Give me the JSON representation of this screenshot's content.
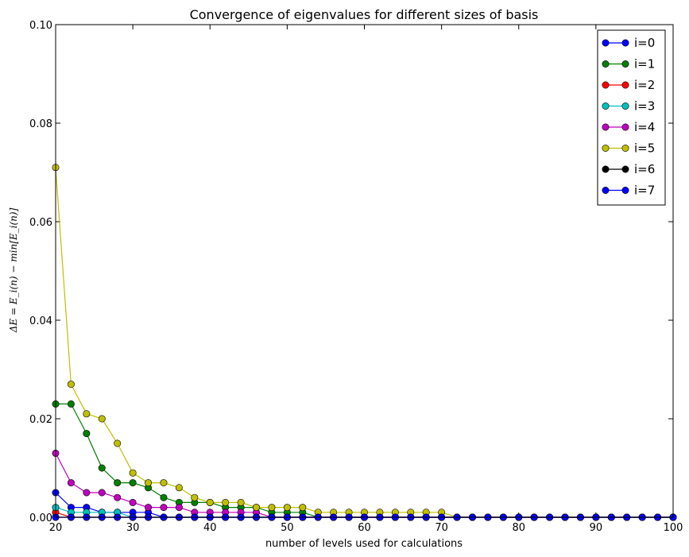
{
  "chart_data": {
    "type": "line",
    "title": "Convergence of eigenvalues for different sizes of basis",
    "xlabel": "number of levels used for calculations",
    "ylabel": "ΔE = E_i(n) − min[E_i(n)]",
    "xlim": [
      20,
      100
    ],
    "ylim": [
      0,
      0.1
    ],
    "x_ticks": [
      "20",
      "30",
      "40",
      "50",
      "60",
      "70",
      "80",
      "90",
      "100"
    ],
    "y_ticks": [
      "0.00",
      "0.02",
      "0.04",
      "0.06",
      "0.08",
      "0.10"
    ],
    "grid": false,
    "legend_position": "top-right",
    "x": [
      20,
      22,
      24,
      26,
      28,
      30,
      32,
      34,
      36,
      38,
      40,
      42,
      44,
      46,
      48,
      50,
      52,
      54,
      56,
      58,
      60,
      62,
      64,
      66,
      68,
      70,
      72,
      74,
      76,
      78,
      80,
      82,
      84,
      86,
      88,
      90,
      92,
      94,
      96,
      98,
      100
    ],
    "series": [
      {
        "name": "i=0",
        "color": "#0000ff",
        "values": [
          0.005,
          0.002,
          0.002,
          0.001,
          0.001,
          0.001,
          0.001,
          0,
          0,
          0,
          0,
          0,
          0,
          0,
          0,
          0,
          0,
          0,
          0,
          0,
          0,
          0,
          0,
          0,
          0,
          0,
          0,
          0,
          0,
          0,
          0,
          0,
          0,
          0,
          0,
          0,
          0,
          0,
          0,
          0,
          0
        ]
      },
      {
        "name": "i=1",
        "color": "#008000",
        "values": [
          0.023,
          0.023,
          0.017,
          0.01,
          0.007,
          0.007,
          0.006,
          0.004,
          0.003,
          0.003,
          0.003,
          0.002,
          0.002,
          0.002,
          0.001,
          0.001,
          0.001,
          0,
          0,
          0,
          0,
          0,
          0,
          0,
          0,
          0,
          0,
          0,
          0,
          0,
          0,
          0,
          0,
          0,
          0,
          0,
          0,
          0,
          0,
          0,
          0
        ]
      },
      {
        "name": "i=2",
        "color": "#ff0000",
        "values": [
          0.001,
          0,
          0,
          0,
          0,
          0,
          0,
          0,
          0,
          0,
          0,
          0,
          0,
          0,
          0,
          0,
          0,
          0,
          0,
          0,
          0,
          0,
          0,
          0,
          0,
          0,
          0,
          0,
          0,
          0,
          0,
          0,
          0,
          0,
          0,
          0,
          0,
          0,
          0,
          0,
          0
        ]
      },
      {
        "name": "i=3",
        "color": "#00bfbf",
        "values": [
          0.002,
          0.001,
          0.001,
          0.001,
          0.001,
          0,
          0,
          0,
          0,
          0,
          0,
          0,
          0,
          0,
          0,
          0,
          0,
          0,
          0,
          0,
          0,
          0,
          0,
          0,
          0,
          0,
          0,
          0,
          0,
          0,
          0,
          0,
          0,
          0,
          0,
          0,
          0,
          0,
          0,
          0,
          0
        ]
      },
      {
        "name": "i=4",
        "color": "#bf00bf",
        "values": [
          0.013,
          0.007,
          0.005,
          0.005,
          0.004,
          0.003,
          0.002,
          0.002,
          0.002,
          0.001,
          0.001,
          0.001,
          0.001,
          0.001,
          0,
          0,
          0,
          0,
          0,
          0,
          0,
          0,
          0,
          0,
          0,
          0,
          0,
          0,
          0,
          0,
          0,
          0,
          0,
          0,
          0,
          0,
          0,
          0,
          0,
          0,
          0
        ]
      },
      {
        "name": "i=5",
        "color": "#bfbf00",
        "values": [
          0.071,
          0.027,
          0.021,
          0.02,
          0.015,
          0.009,
          0.007,
          0.007,
          0.006,
          0.004,
          0.003,
          0.003,
          0.003,
          0.002,
          0.002,
          0.002,
          0.002,
          0.001,
          0.001,
          0.001,
          0.001,
          0.001,
          0.001,
          0.001,
          0.001,
          0.001,
          0,
          0,
          0,
          0,
          0,
          0,
          0,
          0,
          0,
          0,
          0,
          0,
          0,
          0,
          0
        ]
      },
      {
        "name": "i=6",
        "color": "#000000",
        "values": [
          0,
          0,
          0,
          0,
          0,
          0,
          0,
          0,
          0,
          0,
          0,
          0,
          0,
          0,
          0,
          0,
          0,
          0,
          0,
          0,
          0,
          0,
          0,
          0,
          0,
          0,
          0,
          0,
          0,
          0,
          0,
          0,
          0,
          0,
          0,
          0,
          0,
          0,
          0,
          0,
          0
        ]
      },
      {
        "name": "i=7",
        "color": "#0000ff",
        "values": [
          0,
          0,
          0,
          0,
          0,
          0,
          0,
          0,
          0,
          0,
          0,
          0,
          0,
          0,
          0,
          0,
          0,
          0,
          0,
          0,
          0,
          0,
          0,
          0,
          0,
          0,
          0,
          0,
          0,
          0,
          0,
          0,
          0,
          0,
          0,
          0,
          0,
          0,
          0,
          0,
          0
        ]
      }
    ]
  }
}
